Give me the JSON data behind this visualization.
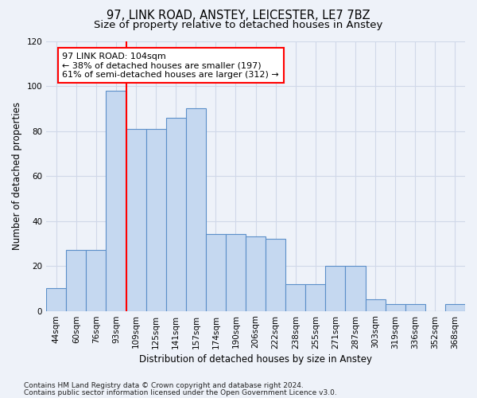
{
  "title1": "97, LINK ROAD, ANSTEY, LEICESTER, LE7 7BZ",
  "title2": "Size of property relative to detached houses in Anstey",
  "xlabel": "Distribution of detached houses by size in Anstey",
  "ylabel": "Number of detached properties",
  "categories": [
    "44sqm",
    "60sqm",
    "76sqm",
    "93sqm",
    "109sqm",
    "125sqm",
    "141sqm",
    "157sqm",
    "174sqm",
    "190sqm",
    "206sqm",
    "222sqm",
    "238sqm",
    "255sqm",
    "271sqm",
    "287sqm",
    "303sqm",
    "319sqm",
    "336sqm",
    "352sqm",
    "368sqm"
  ],
  "values": [
    10,
    27,
    27,
    98,
    81,
    81,
    86,
    90,
    34,
    34,
    33,
    32,
    12,
    12,
    20,
    20,
    5,
    3,
    3,
    0,
    3
  ],
  "bar_color": "#c5d8f0",
  "bar_edge_color": "#5b8fc9",
  "red_line_index": 4,
  "annotation_text": "97 LINK ROAD: 104sqm\n← 38% of detached houses are smaller (197)\n61% of semi-detached houses are larger (312) →",
  "annotation_box_color": "white",
  "annotation_box_edge_color": "red",
  "ylim": [
    0,
    120
  ],
  "yticks": [
    0,
    20,
    40,
    60,
    80,
    100,
    120
  ],
  "footer1": "Contains HM Land Registry data © Crown copyright and database right 2024.",
  "footer2": "Contains public sector information licensed under the Open Government Licence v3.0.",
  "background_color": "#eef2f9",
  "grid_color": "#d0d8e8",
  "title1_fontsize": 10.5,
  "title2_fontsize": 9.5,
  "xlabel_fontsize": 8.5,
  "ylabel_fontsize": 8.5,
  "tick_fontsize": 7.5,
  "annotation_fontsize": 8,
  "footer_fontsize": 6.5
}
